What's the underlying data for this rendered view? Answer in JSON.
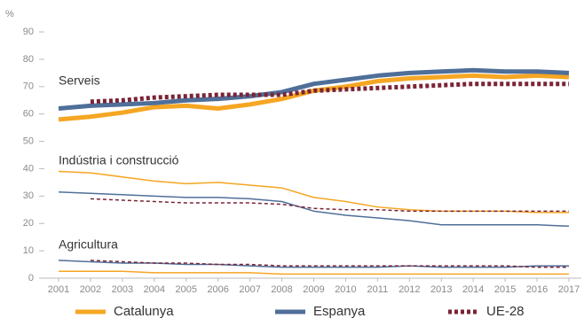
{
  "chart_data": {
    "type": "line",
    "y_label": "%",
    "x": [
      2001,
      2002,
      2003,
      2004,
      2005,
      2006,
      2007,
      2008,
      2009,
      2010,
      2011,
      2012,
      2013,
      2014,
      2015,
      2016,
      2017
    ],
    "xlim": [
      2001,
      2017
    ],
    "ylim": [
      0,
      90
    ],
    "yticks": [
      0,
      10,
      20,
      30,
      40,
      50,
      60,
      70,
      80,
      90
    ],
    "groups": [
      "Serveis",
      "Indústria i construcció",
      "Agricultura"
    ],
    "series": [
      {
        "name": "Catalunya",
        "color": "#f5a623",
        "style": "solid",
        "values": [
          [
            58,
            59,
            60.5,
            62.5,
            63,
            62,
            63.5,
            65.5,
            68.5,
            70,
            72,
            73,
            73.5,
            74,
            73.5,
            74,
            73.5
          ],
          [
            39,
            38.5,
            37,
            35.5,
            34.5,
            35,
            34,
            33,
            29.5,
            28,
            26,
            25,
            24.5,
            24.5,
            24.5,
            24,
            24
          ],
          [
            2.5,
            2.5,
            2.5,
            2,
            2,
            2,
            2,
            1.5,
            1.5,
            1.5,
            1.5,
            1.5,
            1.5,
            1.5,
            1.5,
            1.5,
            1.5
          ]
        ]
      },
      {
        "name": "Espanya",
        "color": "#4f6f99",
        "style": "solid",
        "values": [
          [
            62,
            63,
            63.5,
            64,
            65,
            65.5,
            66.5,
            68,
            71,
            72.5,
            74,
            75,
            75.5,
            76,
            75.5,
            75.5,
            75
          ],
          [
            31.5,
            31,
            30.5,
            30,
            29.5,
            29.5,
            29,
            28,
            24.5,
            23,
            22,
            21,
            19.5,
            19.5,
            19.5,
            19.5,
            19
          ],
          [
            6.5,
            6,
            5.5,
            5.5,
            5,
            5,
            4.5,
            4,
            4,
            4,
            4,
            4.5,
            4,
            4,
            4,
            4.5,
            4.5
          ]
        ]
      },
      {
        "name": "UE-28",
        "color": "#7a2436",
        "style": "dotted",
        "values": [
          [
            null,
            64.5,
            65,
            66,
            66.5,
            67,
            67,
            67,
            68.5,
            69,
            69.5,
            70,
            70.5,
            71,
            71,
            71,
            71
          ],
          [
            null,
            29,
            28.5,
            28,
            27.5,
            27.5,
            27.5,
            27,
            25.5,
            25,
            25,
            24.5,
            24.5,
            24.5,
            24.5,
            24.5,
            24.5
          ],
          [
            null,
            6.5,
            6,
            5.5,
            5.5,
            5,
            5,
            4.5,
            4.5,
            4.5,
            4.5,
            4.5,
            4.5,
            4.5,
            4.5,
            4,
            4
          ]
        ]
      }
    ]
  }
}
